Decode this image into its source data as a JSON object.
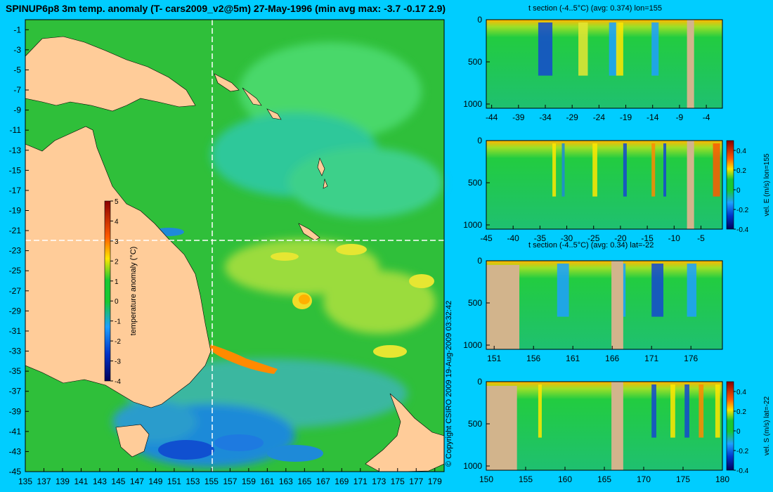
{
  "title": "SPINUP6p8 3m temp. anomaly (T- cars2009_v2@5m) 27-May-1996 (min avg max: -3.7 -0.17 2.9)",
  "copyright": "© Copyright CSIRO 2009   19-Aug-2009 03:32:42",
  "colors": {
    "background": "#00cdff",
    "land": "#ffcc99",
    "section_land": "#d2b48c",
    "ocean_mean": "#19c832",
    "crosshair": "#ffffff"
  },
  "chart_data": [
    {
      "type": "heatmap",
      "panel": "map",
      "title": "",
      "x_ticks": [
        135,
        137,
        139,
        141,
        143,
        145,
        147,
        149,
        151,
        153,
        155,
        157,
        159,
        161,
        163,
        165,
        167,
        169,
        171,
        173,
        175,
        177,
        179
      ],
      "y_ticks": [
        -1,
        -3,
        -5,
        -7,
        -9,
        -11,
        -13,
        -15,
        -17,
        -19,
        -21,
        -23,
        -25,
        -27,
        -29,
        -31,
        -33,
        -35,
        -37,
        -39,
        -41,
        -43,
        -45
      ],
      "xlim": [
        135,
        180
      ],
      "ylim": [
        -45,
        0
      ],
      "crosshair": {
        "lon": 155,
        "lat": -22
      },
      "colorbar": {
        "label": "temperature anomaly (°C)",
        "ticks": [
          5,
          4,
          3,
          2,
          1,
          0,
          -1,
          -2,
          -3,
          -4
        ],
        "range": [
          -4,
          5
        ]
      },
      "features": {
        "warm_anomalies": [
          "Coral Sea eddies near 163-169E, 23-29S",
          "East Australian Current extension near 155-159E, 33-35S"
        ],
        "cool_anomalies": [
          "Tasman Sea south of 39S",
          "coastal strip near 151-153E, 21-23S"
        ]
      }
    },
    {
      "type": "heatmap",
      "panel": "t-section-lon155",
      "title": "t section (-4..5°C) (avg: 0.374) lon=155",
      "x_ticks": [
        -44,
        -39,
        -34,
        -29,
        -24,
        -19,
        -14,
        -9,
        -4
      ],
      "y_ticks": [
        0,
        500,
        1000
      ],
      "xlim": [
        -45,
        -1
      ],
      "ylim": [
        1050,
        0
      ]
    },
    {
      "type": "heatmap",
      "panel": "vel-E-lon155",
      "title": "",
      "x_ticks": [
        -45,
        -40,
        -35,
        -30,
        -25,
        -20,
        -15,
        -10,
        -5
      ],
      "y_ticks": [
        0,
        500,
        1000
      ],
      "xlim": [
        -45,
        -1
      ],
      "ylim": [
        1050,
        0
      ],
      "colorbar": {
        "label": "vel. E (m/s) lon=155",
        "ticks": [
          "0.4",
          "0.2",
          "0",
          "-0.2",
          "-0.4"
        ],
        "range": [
          -0.4,
          0.5
        ]
      }
    },
    {
      "type": "heatmap",
      "panel": "t-section-lat-22",
      "title": "t section (-4..5°C) (avg: 0.34) lat=-22",
      "x_ticks": [
        151,
        156,
        161,
        166,
        171,
        176
      ],
      "y_ticks": [
        0,
        500,
        1000
      ],
      "xlim": [
        150,
        180
      ],
      "ylim": [
        1050,
        0
      ]
    },
    {
      "type": "heatmap",
      "panel": "vel-S-lat-22",
      "title": "",
      "x_ticks": [
        150,
        155,
        160,
        165,
        170,
        175,
        180
      ],
      "y_ticks": [
        0,
        500,
        1000
      ],
      "xlim": [
        150,
        180
      ],
      "ylim": [
        1050,
        0
      ],
      "colorbar": {
        "label": "vel. S (m/s) lat=-22",
        "ticks": [
          "0.4",
          "0.2",
          "0",
          "-0.2",
          "-0.4"
        ],
        "range": [
          -0.4,
          0.5
        ]
      }
    }
  ]
}
